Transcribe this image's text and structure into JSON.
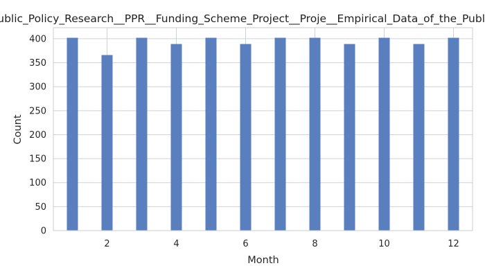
{
  "chart_data": {
    "type": "bar",
    "title": "Public_Policy_Research__PPR__Funding_Scheme_Project__Proje__Empirical_Data_of_the_Public",
    "xlabel": "Month",
    "ylabel": "Count",
    "x": [
      1,
      2,
      3,
      4,
      5,
      6,
      7,
      8,
      9,
      10,
      11,
      12
    ],
    "values": [
      402,
      366,
      402,
      389,
      402,
      389,
      402,
      402,
      389,
      402,
      389,
      402
    ],
    "xlim": [
      0.45,
      12.55
    ],
    "ylim": [
      0,
      423
    ],
    "xticks": [
      2,
      4,
      6,
      8,
      10,
      12
    ],
    "yticks": [
      0,
      50,
      100,
      150,
      200,
      250,
      300,
      350,
      400
    ],
    "grid": true,
    "bar_color": "#5a7fbf"
  }
}
